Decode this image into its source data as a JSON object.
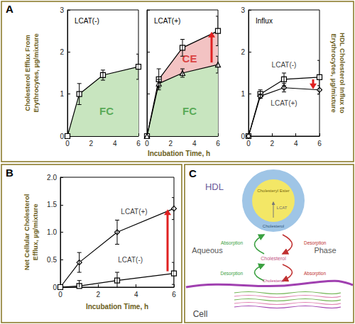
{
  "panels": [
    {
      "label": "A",
      "x_label": "Incubation Time, h",
      "y_label": "Cholesterol Efflux From\nErythrocytes, µg/mixture",
      "y2_label": "HDL Cholesterol Influx to\nErythrocytes, µg/mixture"
    },
    {
      "label": "B"
    }
  ],
  "chart_data": [
    {
      "type": "line",
      "title": "LCAT(-)",
      "x": [
        0,
        1,
        3,
        6
      ],
      "xlim": [
        0,
        6
      ],
      "xticks": [
        0,
        2,
        4,
        6
      ],
      "ylim": [
        0,
        3
      ],
      "yticks": [
        0,
        1,
        2,
        3
      ],
      "grid": false,
      "series": [
        {
          "type": "area",
          "color": "#c8e5bf",
          "marker": "square",
          "values": [
            0,
            1.0,
            1.45,
            1.65
          ],
          "error": [
            0,
            0.25,
            0.12,
            0.3
          ]
        }
      ],
      "annotations": [
        {
          "text": "FC",
          "x": 3.3,
          "y": 0.6,
          "color": "#3a9a3a"
        }
      ]
    },
    {
      "type": "line",
      "title": "LCAT(+)",
      "x": [
        0,
        1,
        3,
        6
      ],
      "xlim": [
        0,
        6
      ],
      "xticks": [
        0,
        2,
        4,
        6
      ],
      "ylim": [
        0,
        3
      ],
      "yticks": [
        0,
        1,
        2,
        3
      ],
      "grid": false,
      "tick_labels": "x",
      "series": [
        {
          "type": "area",
          "color": "#f3c3c3",
          "marker": "square",
          "values": [
            0,
            1.35,
            2.1,
            2.5
          ],
          "error": [
            0,
            0.25,
            0.2,
            0.35
          ]
        },
        {
          "type": "area",
          "color": "#c8e5bf",
          "marker": "triangle",
          "values": [
            0,
            1.25,
            1.5,
            1.7
          ],
          "error": [
            0,
            0.1,
            0.1,
            0.2
          ]
        }
      ],
      "annotations": [
        {
          "text": "CE",
          "x": 3.6,
          "y": 1.85,
          "color": "#d42020"
        },
        {
          "text": "FC",
          "x": 3.6,
          "y": 0.6,
          "color": "#3a9a3a"
        }
      ]
    },
    {
      "type": "line",
      "title": "Influx",
      "x": [
        0,
        1,
        3,
        6
      ],
      "xlim": [
        0,
        6
      ],
      "xticks": [
        0,
        2,
        4,
        6
      ],
      "ylim": [
        0,
        3
      ],
      "yticks": [
        0,
        1,
        2,
        3
      ],
      "grid": false,
      "series": [
        {
          "color": "#000000",
          "marker": "square",
          "values": [
            0,
            1.0,
            1.35,
            1.4
          ],
          "error": [
            0,
            0.1,
            0.15,
            0.4
          ]
        },
        {
          "color": "#000000",
          "marker": "diamond",
          "values": [
            0,
            0.95,
            1.15,
            1.1
          ],
          "error": [
            0,
            0.05,
            0.1,
            0.1
          ]
        }
      ],
      "annotations": [
        {
          "text": "LCAT(-)",
          "x": 3,
          "y": 1.7,
          "color": "#000000"
        },
        {
          "text": "LCAT(+)",
          "x": 3,
          "y": 0.78,
          "color": "#000000"
        }
      ]
    },
    {
      "type": "line",
      "x_label": "Incubation Time, h",
      "y_label": "Net Cellular Cholesterol\nEfflux, µg/mixture",
      "x": [
        0,
        1,
        3,
        6
      ],
      "xlim": [
        0,
        6
      ],
      "xticks": [
        0,
        2,
        4,
        6
      ],
      "ylim": [
        0,
        2
      ],
      "yticks": [
        0,
        0.5,
        {
          "value": 1,
          "label": "1.0"
        },
        1.5,
        {
          "value": 2,
          "label": "2.0"
        }
      ],
      "grid": false,
      "series": [
        {
          "color": "#000000",
          "marker": "diamond",
          "values": [
            0,
            0.45,
            1.0,
            1.43
          ],
          "error": [
            0,
            0.18,
            0.22,
            0.2
          ]
        },
        {
          "color": "#000000",
          "marker": "square",
          "values": [
            0,
            0.02,
            0.12,
            0.25
          ],
          "error": [
            0,
            0.1,
            0.15,
            0.2
          ]
        }
      ],
      "annotations": [
        {
          "text": "LCAT(+)",
          "x": 3.9,
          "y": 1.38,
          "color": "#000000"
        },
        {
          "text": "LCAT(-)",
          "x": 3.7,
          "y": 0.5,
          "color": "#000000"
        }
      ]
    }
  ],
  "diagram": {
    "label": "C",
    "particle": "HDL",
    "core": "Cholesteryl Ester",
    "enzyme": "LCAT",
    "shell": "Cholesterol",
    "phase": [
      "Aqueous",
      "Phase"
    ],
    "aqueous_species": "Cholesterol",
    "arrows": [
      {
        "text": "Absorption",
        "color": "#3aa040"
      },
      {
        "text": "Desorption",
        "color": "#c03030"
      },
      {
        "text": "Desorption",
        "color": "#3aa040"
      },
      {
        "text": "Absorption",
        "color": "#c03030"
      }
    ],
    "membrane": "Cholesterol",
    "cell": "Cell"
  }
}
